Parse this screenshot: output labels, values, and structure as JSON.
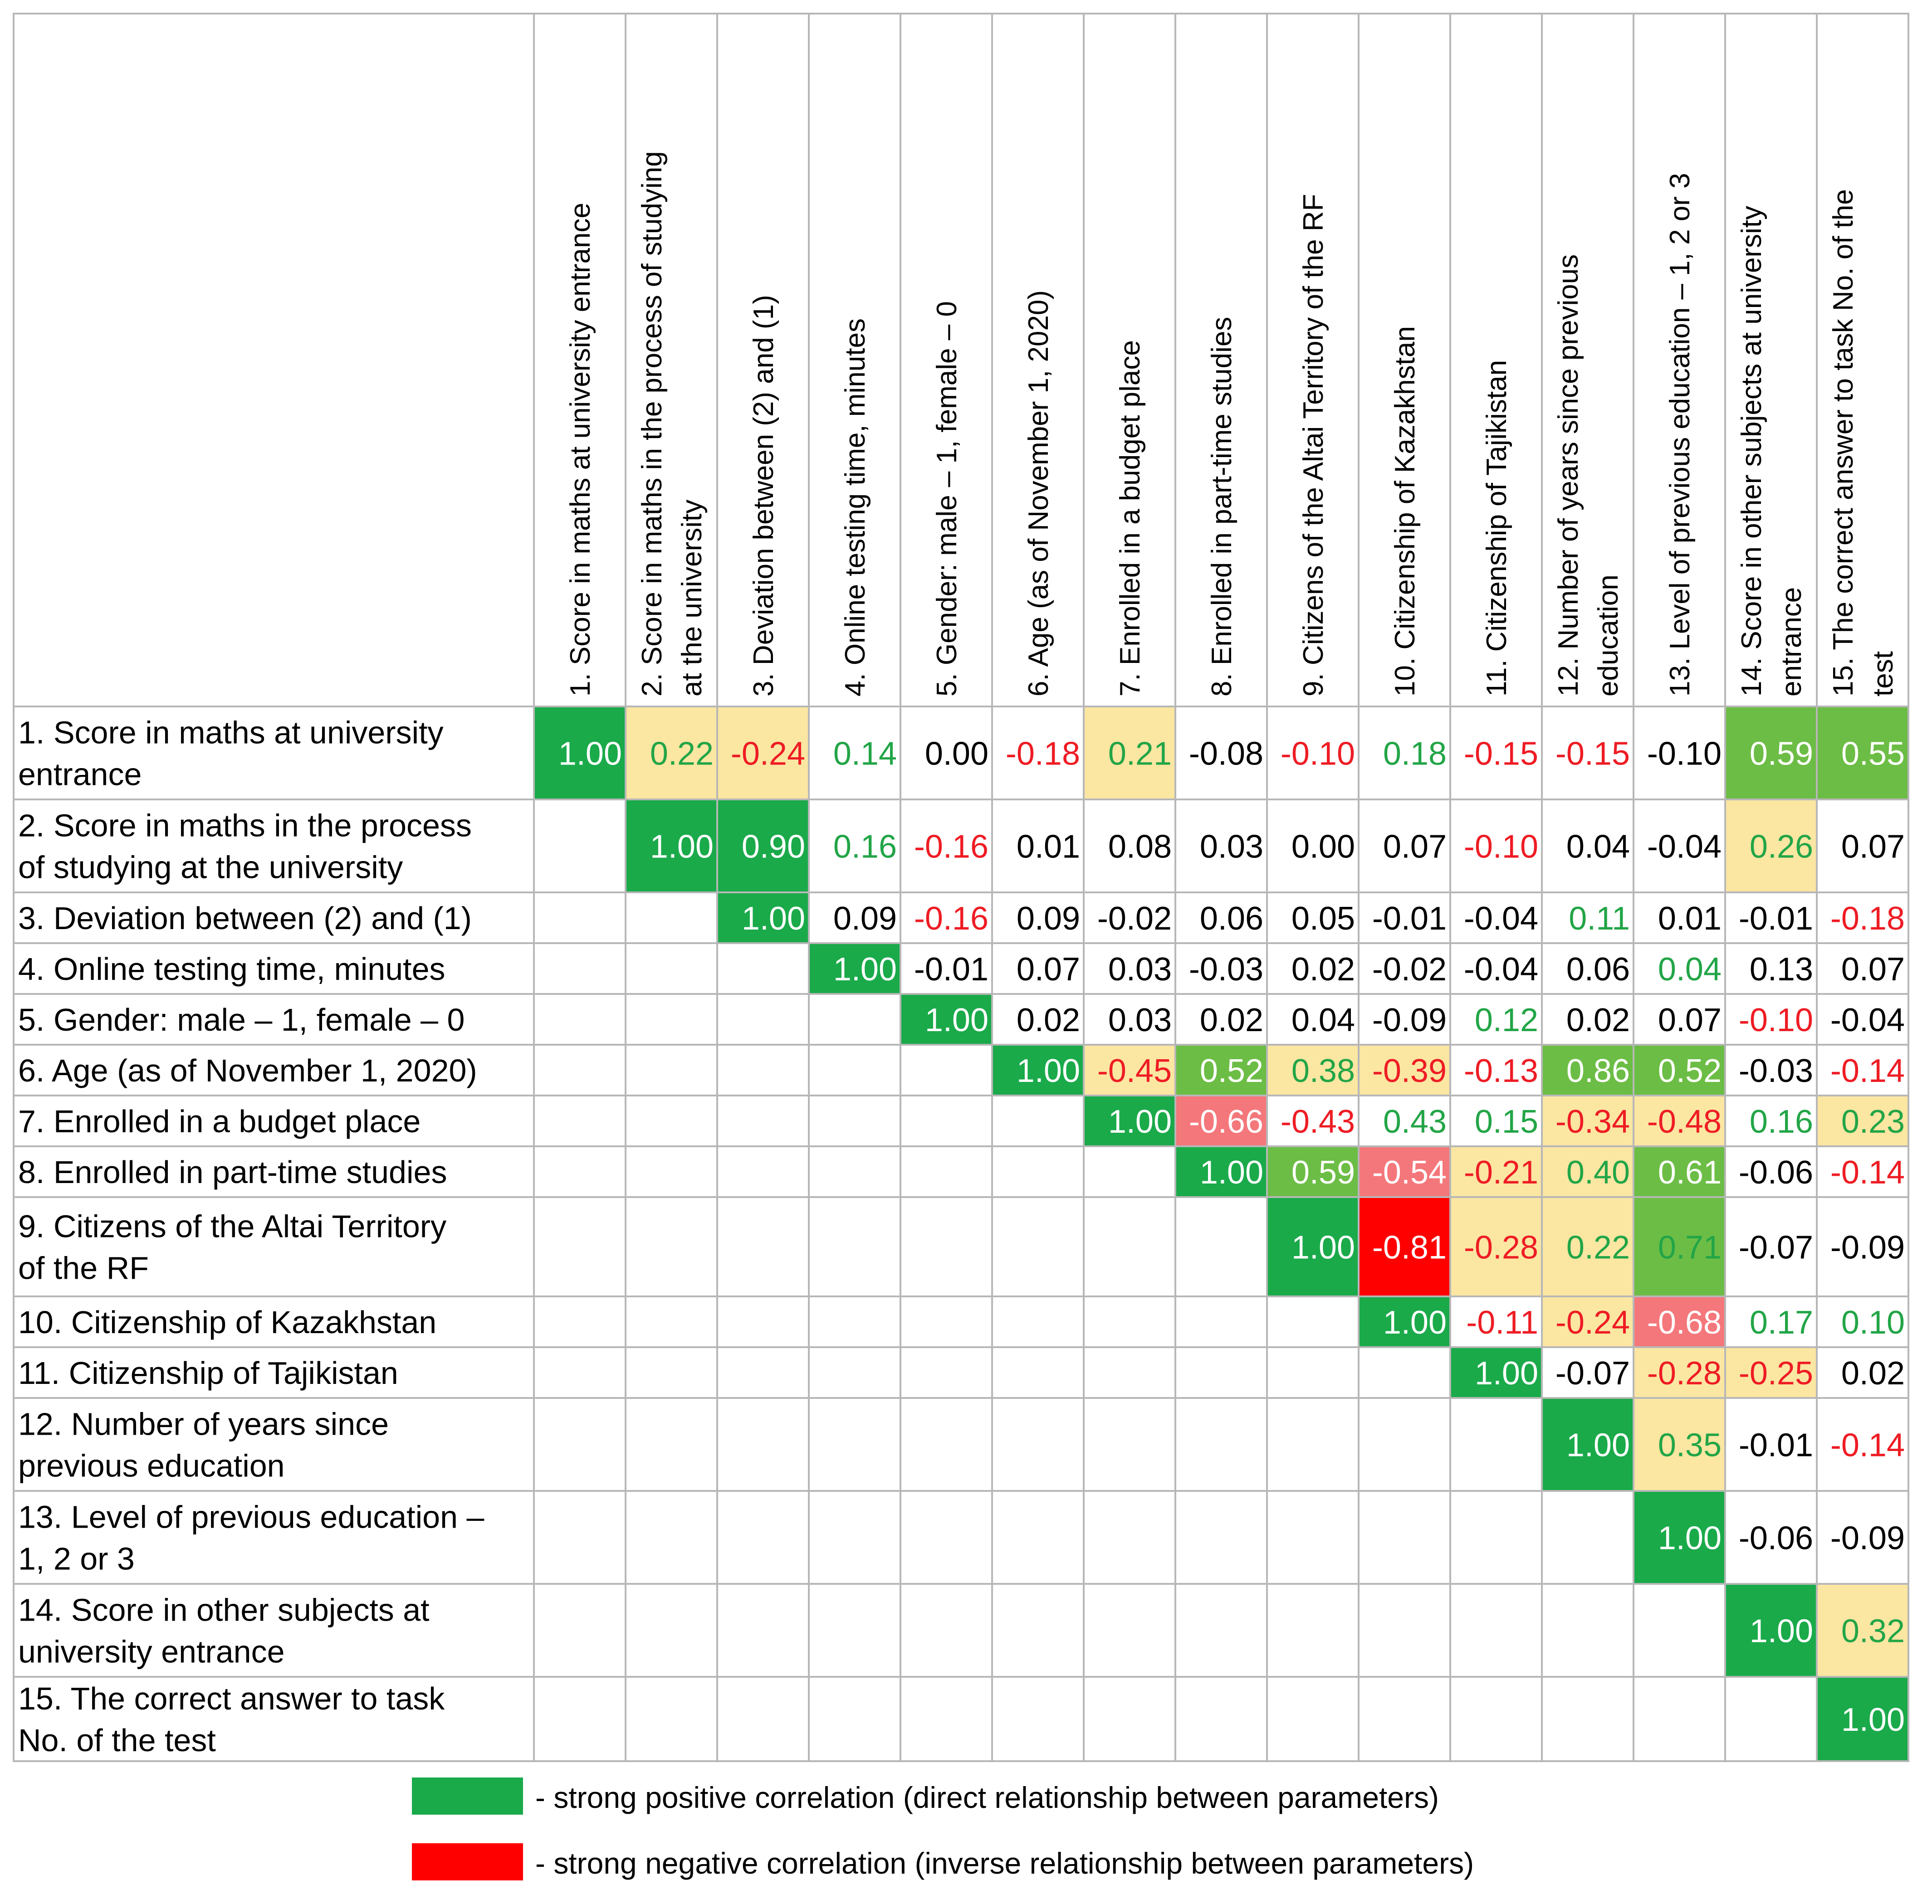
{
  "chart_data": {
    "type": "heatmap",
    "title": "",
    "variables": [
      {
        "id": 1,
        "row": [
          "1. Score in maths at university",
          "entrance"
        ],
        "col": [
          "1. Score in maths at university entrance"
        ]
      },
      {
        "id": 2,
        "row": [
          "2. Score in maths in the process",
          "of studying at the university"
        ],
        "col": [
          "2. Score in maths in the process of studying",
          "at the university"
        ]
      },
      {
        "id": 3,
        "row": [
          "3. Deviation between (2) and (1)"
        ],
        "col": [
          "3. Deviation between (2) and (1)"
        ]
      },
      {
        "id": 4,
        "row": [
          "4. Online testing time, minutes"
        ],
        "col": [
          "4. Online testing time, minutes"
        ]
      },
      {
        "id": 5,
        "row": [
          "5. Gender: male – 1, female – 0"
        ],
        "col": [
          "5. Gender: male – 1, female – 0"
        ]
      },
      {
        "id": 6,
        "row": [
          "6. Age (as of November 1, 2020)"
        ],
        "col": [
          "6. Age (as of November 1, 2020)"
        ]
      },
      {
        "id": 7,
        "row": [
          "7. Enrolled in a budget place"
        ],
        "col": [
          "7. Enrolled in a budget place"
        ]
      },
      {
        "id": 8,
        "row": [
          "8. Enrolled in part-time studies"
        ],
        "col": [
          "8. Enrolled in part-time studies"
        ]
      },
      {
        "id": 9,
        "row": [
          "9. Citizens of the Altai Territory",
          "of the RF"
        ],
        "col": [
          "9. Citizens of the Altai Territory of the RF"
        ]
      },
      {
        "id": 10,
        "row": [
          "10. Citizenship of Kazakhstan"
        ],
        "col": [
          "10. Citizenship of Kazakhstan"
        ]
      },
      {
        "id": 11,
        "row": [
          "11. Citizenship of Tajikistan"
        ],
        "col": [
          "11. Citizenship of Tajikistan"
        ]
      },
      {
        "id": 12,
        "row": [
          "12. Number of years since",
          "previous education"
        ],
        "col": [
          "12. Number of years since previous",
          "education"
        ]
      },
      {
        "id": 13,
        "row": [
          "13. Level of previous education –",
          "1, 2 or 3"
        ],
        "col": [
          "13. Level of previous education – 1, 2 or 3"
        ]
      },
      {
        "id": 14,
        "row": [
          "14. Score in other subjects at",
          "university entrance"
        ],
        "col": [
          "14. Score in other subjects at university",
          "entrance"
        ]
      },
      {
        "id": 15,
        "row": [
          "15. The correct answer to task",
          "No. of the test"
        ],
        "col": [
          "15. The correct answer to task No. of the",
          "test"
        ]
      }
    ],
    "rows": [
      [
        "1.00",
        "0.22",
        "-0.24",
        "0.14",
        "0.00",
        "-0.18",
        "0.21",
        "-0.08",
        "-0.10",
        "0.18",
        "-0.15",
        "-0.15",
        "-0.10",
        "0.59",
        "0.55"
      ],
      [
        "1.00",
        "0.90",
        "0.16",
        "-0.16",
        "0.01",
        "0.08",
        "0.03",
        "0.00",
        "0.07",
        "-0.10",
        "0.04",
        "-0.04",
        "0.26",
        "0.07"
      ],
      [
        "1.00",
        "0.09",
        "-0.16",
        "0.09",
        "-0.02",
        "0.06",
        "0.05",
        "-0.01",
        "-0.04",
        "0.11",
        "0.01",
        "-0.01",
        "-0.18"
      ],
      [
        "1.00",
        "-0.01",
        "0.07",
        "0.03",
        "-0.03",
        "0.02",
        "-0.02",
        "-0.04",
        "0.06",
        "0.04",
        "0.13",
        "0.07"
      ],
      [
        "1.00",
        "0.02",
        "0.03",
        "0.02",
        "0.04",
        "-0.09",
        "0.12",
        "0.02",
        "0.07",
        "-0.10",
        "-0.04"
      ],
      [
        "1.00",
        "-0.45",
        "0.52",
        "0.38",
        "-0.39",
        "-0.13",
        "0.86",
        "0.52",
        "-0.03",
        "-0.14"
      ],
      [
        "1.00",
        "-0.66",
        "-0.43",
        "0.43",
        "0.15",
        "-0.34",
        "-0.48",
        "0.16",
        "0.23"
      ],
      [
        "1.00",
        "0.59",
        "-0.54",
        "-0.21",
        "0.40",
        "0.61",
        "-0.06",
        "-0.14"
      ],
      [
        "1.00",
        "-0.81",
        "-0.28",
        "0.22",
        "0.71",
        "-0.07",
        "-0.09"
      ],
      [
        "1.00",
        "-0.11",
        "-0.24",
        "-0.68",
        "0.17",
        "0.10"
      ],
      [
        "1.00",
        "-0.07",
        "-0.28",
        "-0.25",
        "0.02"
      ],
      [
        "1.00",
        "0.35",
        "-0.01",
        "-0.14"
      ],
      [
        "1.00",
        "-0.06",
        "-0.09"
      ],
      [
        "1.00",
        "0.32"
      ],
      [
        "1.00"
      ]
    ],
    "cell_fills": [
      [
        "green",
        "yellow",
        "yellow",
        "",
        "",
        "",
        "yellow",
        "",
        "",
        "",
        "",
        "",
        "",
        "lightgreen",
        "lightgreen"
      ],
      [
        "green",
        "green",
        "",
        "",
        "",
        "",
        "",
        "",
        "",
        "",
        "",
        "",
        "yellow",
        ""
      ],
      [
        "green",
        "",
        "",
        "",
        "",
        "",
        "",
        "",
        "",
        "",
        "",
        "",
        ""
      ],
      [
        "green",
        "",
        "",
        "",
        "",
        "",
        "",
        "",
        "",
        "",
        "",
        ""
      ],
      [
        "green",
        "",
        "",
        "",
        "",
        "",
        "",
        "",
        "",
        "",
        ""
      ],
      [
        "green",
        "yellow",
        "lightgreen",
        "yellow",
        "yellow",
        "",
        "lightgreen",
        "lightgreen",
        "",
        ""
      ],
      [
        "green",
        "pink",
        "",
        "",
        "",
        "yellow",
        "yellow",
        "",
        "yellow"
      ],
      [
        "green",
        "lightgreen",
        "pink",
        "yellow",
        "yellow",
        "lightgreen",
        "",
        ""
      ],
      [
        "green",
        "red",
        "yellow",
        "yellow",
        "lightgreen",
        "",
        ""
      ],
      [
        "green",
        "",
        "yellow",
        "pink",
        "",
        ""
      ],
      [
        "green",
        "",
        "yellow",
        "yellow",
        ""
      ],
      [
        "green",
        "yellow",
        "",
        ""
      ],
      [
        "green",
        "",
        ""
      ],
      [
        "green",
        "yellow"
      ],
      [
        "green"
      ]
    ],
    "text_colors": [
      [
        "white",
        "green",
        "red",
        "green",
        "black",
        "red",
        "green",
        "black",
        "red",
        "green",
        "red",
        "red",
        "black",
        "white",
        "white"
      ],
      [
        "white",
        "white",
        "green",
        "red",
        "black",
        "black",
        "black",
        "black",
        "black",
        "red",
        "black",
        "black",
        "green",
        "black"
      ],
      [
        "white",
        "black",
        "red",
        "black",
        "black",
        "black",
        "black",
        "black",
        "black",
        "green",
        "black",
        "black",
        "red"
      ],
      [
        "white",
        "black",
        "black",
        "black",
        "black",
        "black",
        "black",
        "black",
        "black",
        "green",
        "black"
      ],
      [
        "white",
        "black",
        "black",
        "black",
        "black",
        "black",
        "green",
        "black",
        "black",
        "red",
        "black"
      ],
      [
        "white",
        "red",
        "white",
        "green",
        "red",
        "red",
        "white",
        "white",
        "black",
        "red"
      ],
      [
        "white",
        "white",
        "red",
        "green",
        "green",
        "red",
        "red",
        "green",
        "green"
      ],
      [
        "white",
        "white",
        "white",
        "red",
        "green",
        "white",
        "black",
        "red"
      ],
      [
        "white",
        "white",
        "red",
        "green",
        "green",
        "black",
        "black"
      ],
      [
        "white",
        "red",
        "red",
        "white",
        "green",
        "green"
      ],
      [
        "white",
        "black",
        "red",
        "red",
        "black"
      ],
      [
        "white",
        "green",
        "black",
        "red"
      ],
      [
        "white",
        "black",
        "black"
      ],
      [
        "white",
        "green"
      ],
      [
        "white"
      ]
    ],
    "legend": [
      {
        "color": "#1aaa4a",
        "label": "- strong positive correlation (direct relationship between parameters)"
      },
      {
        "color": "#ff0000",
        "label": "- strong negative correlation (inverse relationship between parameters)"
      }
    ]
  },
  "colors": {
    "green": "#1aaa4a",
    "lightgreen": "#6cbd45",
    "yellow": "#fbe6a2",
    "pink": "#f4777b",
    "red": "#ff0000",
    "text_green": "#22a547",
    "text_red": "#ee1c24",
    "grid": "#b7b7b7"
  }
}
